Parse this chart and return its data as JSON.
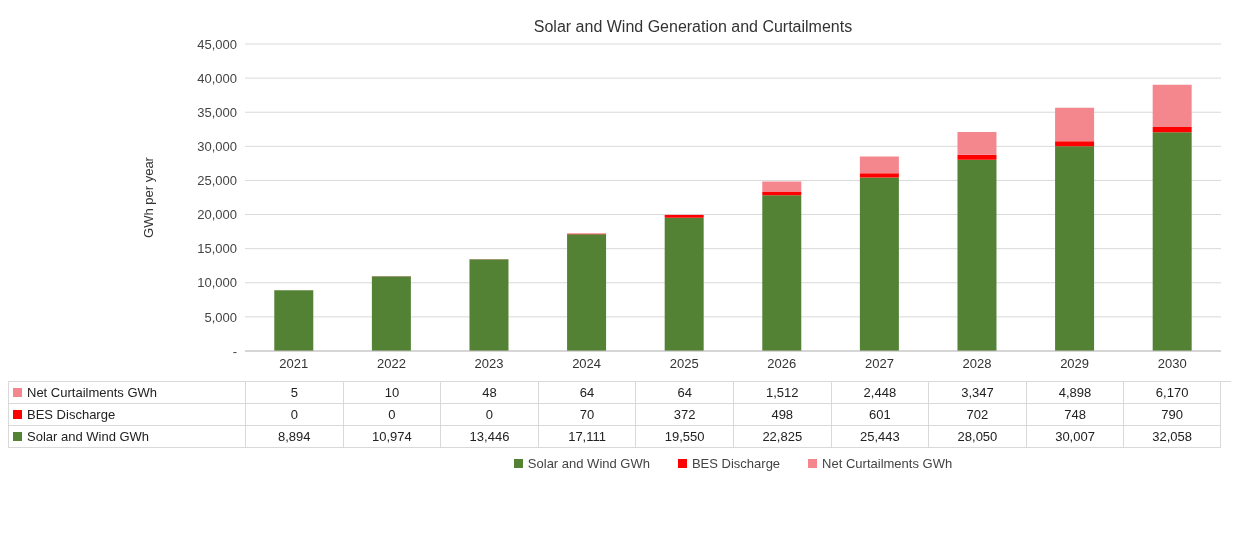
{
  "chart_data": {
    "type": "bar",
    "title": "Solar and Wind Generation and Curtailments",
    "ylabel": "GWh per year",
    "categories": [
      "2021",
      "2022",
      "2023",
      "2024",
      "2025",
      "2026",
      "2027",
      "2028",
      "2029",
      "2030"
    ],
    "stacked": true,
    "series": [
      {
        "name": "Solar and Wind GWh",
        "color": "#548235",
        "values": [
          8894,
          10974,
          13446,
          17111,
          19550,
          22825,
          25443,
          28050,
          30007,
          32058
        ],
        "value_labels": [
          "8,894",
          "10,974",
          "13,446",
          "17,111",
          "19,550",
          "22,825",
          "25,443",
          "28,050",
          "30,007",
          "32,058"
        ]
      },
      {
        "name": "BES Discharge",
        "color": "#ff0000",
        "values": [
          0,
          0,
          0,
          70,
          372,
          498,
          601,
          702,
          748,
          790
        ],
        "value_labels": [
          "0",
          "0",
          "0",
          "70",
          "372",
          "498",
          "601",
          "702",
          "748",
          "790"
        ]
      },
      {
        "name": "Net Curtailments GWh",
        "color": "#f4868e",
        "values": [
          5,
          10,
          48,
          64,
          64,
          1512,
          2448,
          3347,
          4898,
          6170
        ],
        "value_labels": [
          "5",
          "10",
          "48",
          "64",
          "64",
          "1,512",
          "2,448",
          "3,347",
          "4,898",
          "6,170"
        ]
      }
    ],
    "ylim": [
      0,
      45000
    ],
    "yticks": [
      {
        "value": 0,
        "label": "-"
      },
      {
        "value": 5000,
        "label": "5,000"
      },
      {
        "value": 10000,
        "label": "10,000"
      },
      {
        "value": 15000,
        "label": "15,000"
      },
      {
        "value": 20000,
        "label": "20,000"
      },
      {
        "value": 25000,
        "label": "25,000"
      },
      {
        "value": 30000,
        "label": "30,000"
      },
      {
        "value": 35000,
        "label": "35,000"
      },
      {
        "value": 40000,
        "label": "40,000"
      },
      {
        "value": 45000,
        "label": "45,000"
      }
    ],
    "grid": "y",
    "legend": "bottom"
  }
}
